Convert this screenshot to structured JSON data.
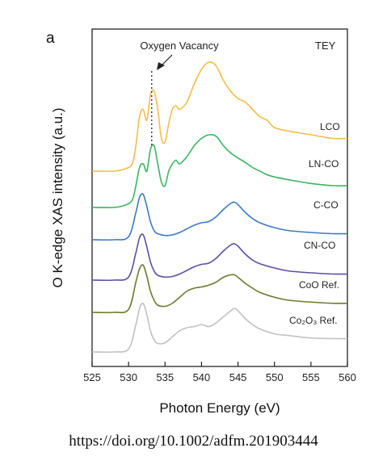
{
  "panel_letter": "a",
  "caption": "https://doi.org/10.1002/adfm.201903444",
  "chart_data": {
    "type": "line",
    "title": "",
    "xlabel": "Photon Energy (eV)",
    "ylabel": "O K-edge XAS intensity (a.u.)",
    "xlim": [
      525,
      560
    ],
    "xticks": [
      "525",
      "530",
      "535",
      "540",
      "545",
      "550",
      "555",
      "560"
    ],
    "ytick_labels": false,
    "grid": false,
    "legend": "labels next to each curve on the right side",
    "mode_label": "TEY",
    "annotation": {
      "text": "Oxygen Vacancy",
      "energy": 533.5
    },
    "series": [
      {
        "name": "LCO",
        "color": "#f4bd49",
        "baseline": 0.0,
        "points": [
          [
            525,
            0.0
          ],
          [
            528,
            0.0
          ],
          [
            529.5,
            0.03
          ],
          [
            530.5,
            0.1
          ],
          [
            531,
            0.35
          ],
          [
            531.5,
            0.75
          ],
          [
            532,
            0.85
          ],
          [
            532.5,
            0.7
          ],
          [
            533,
            1.05
          ],
          [
            533.5,
            1.1
          ],
          [
            534,
            0.85
          ],
          [
            534.5,
            0.45
          ],
          [
            535,
            0.4
          ],
          [
            535.5,
            0.65
          ],
          [
            536,
            0.85
          ],
          [
            536.5,
            0.9
          ],
          [
            537,
            0.85
          ],
          [
            538,
            0.95
          ],
          [
            539,
            1.2
          ],
          [
            540,
            1.4
          ],
          [
            541,
            1.5
          ],
          [
            542,
            1.45
          ],
          [
            543,
            1.25
          ],
          [
            544,
            1.1
          ],
          [
            545,
            1.0
          ],
          [
            546,
            0.95
          ],
          [
            547,
            0.85
          ],
          [
            548,
            0.75
          ],
          [
            549,
            0.7
          ],
          [
            550,
            0.6
          ],
          [
            552,
            0.55
          ],
          [
            555,
            0.5
          ],
          [
            558,
            0.45
          ],
          [
            560,
            0.45
          ]
        ]
      },
      {
        "name": "LN-CO",
        "color": "#3bb462",
        "baseline": 0.0,
        "points": [
          [
            525,
            0.0
          ],
          [
            528,
            0.0
          ],
          [
            529.5,
            0.03
          ],
          [
            530.5,
            0.1
          ],
          [
            531,
            0.3
          ],
          [
            531.5,
            0.55
          ],
          [
            532,
            0.6
          ],
          [
            532.5,
            0.5
          ],
          [
            533,
            0.8
          ],
          [
            533.5,
            0.85
          ],
          [
            534,
            0.6
          ],
          [
            534.5,
            0.35
          ],
          [
            535,
            0.3
          ],
          [
            535.5,
            0.5
          ],
          [
            536,
            0.6
          ],
          [
            536.5,
            0.65
          ],
          [
            537,
            0.6
          ],
          [
            538,
            0.7
          ],
          [
            539,
            0.85
          ],
          [
            540,
            0.95
          ],
          [
            541,
            1.0
          ],
          [
            542,
            0.98
          ],
          [
            543,
            0.85
          ],
          [
            544,
            0.75
          ],
          [
            545,
            0.68
          ],
          [
            546,
            0.62
          ],
          [
            547,
            0.55
          ],
          [
            548,
            0.5
          ],
          [
            549,
            0.45
          ],
          [
            550,
            0.42
          ],
          [
            552,
            0.38
          ],
          [
            555,
            0.33
          ],
          [
            558,
            0.3
          ],
          [
            560,
            0.3
          ]
        ]
      },
      {
        "name": "C-CO",
        "color": "#3b7bc4",
        "baseline": 0.0,
        "points": [
          [
            525,
            0.0
          ],
          [
            528,
            0.0
          ],
          [
            530,
            0.05
          ],
          [
            531,
            0.45
          ],
          [
            531.5,
            0.7
          ],
          [
            532,
            0.75
          ],
          [
            532.5,
            0.55
          ],
          [
            533,
            0.3
          ],
          [
            533.5,
            0.15
          ],
          [
            534,
            0.1
          ],
          [
            535,
            0.07
          ],
          [
            536,
            0.08
          ],
          [
            537,
            0.12
          ],
          [
            538,
            0.18
          ],
          [
            539,
            0.24
          ],
          [
            540,
            0.28
          ],
          [
            541,
            0.3
          ],
          [
            542,
            0.38
          ],
          [
            543,
            0.5
          ],
          [
            544,
            0.6
          ],
          [
            544.5,
            0.62
          ],
          [
            545,
            0.58
          ],
          [
            546,
            0.45
          ],
          [
            547,
            0.35
          ],
          [
            548,
            0.28
          ],
          [
            550,
            0.2
          ],
          [
            552,
            0.15
          ],
          [
            555,
            0.12
          ],
          [
            558,
            0.1
          ],
          [
            560,
            0.1
          ]
        ]
      },
      {
        "name": "CN-CO",
        "color": "#5c4ea7",
        "baseline": 0.0,
        "points": [
          [
            525,
            0.0
          ],
          [
            528,
            0.0
          ],
          [
            530,
            0.05
          ],
          [
            531,
            0.45
          ],
          [
            531.5,
            0.7
          ],
          [
            532,
            0.75
          ],
          [
            532.5,
            0.55
          ],
          [
            533,
            0.3
          ],
          [
            533.5,
            0.15
          ],
          [
            534,
            0.08
          ],
          [
            535,
            0.05
          ],
          [
            536,
            0.06
          ],
          [
            537,
            0.1
          ],
          [
            538,
            0.16
          ],
          [
            539,
            0.22
          ],
          [
            540,
            0.26
          ],
          [
            541,
            0.28
          ],
          [
            542,
            0.36
          ],
          [
            543,
            0.48
          ],
          [
            544,
            0.58
          ],
          [
            544.5,
            0.6
          ],
          [
            545,
            0.56
          ],
          [
            546,
            0.43
          ],
          [
            547,
            0.33
          ],
          [
            548,
            0.27
          ],
          [
            550,
            0.2
          ],
          [
            552,
            0.15
          ],
          [
            555,
            0.12
          ],
          [
            558,
            0.1
          ],
          [
            560,
            0.1
          ]
        ]
      },
      {
        "name": "CoO Ref.",
        "color": "#6f7a2e",
        "baseline": 0.0,
        "points": [
          [
            525,
            0.0
          ],
          [
            528,
            0.0
          ],
          [
            530,
            0.05
          ],
          [
            531,
            0.5
          ],
          [
            531.5,
            0.72
          ],
          [
            532,
            0.78
          ],
          [
            532.5,
            0.6
          ],
          [
            533,
            0.35
          ],
          [
            533.5,
            0.2
          ],
          [
            534,
            0.12
          ],
          [
            535,
            0.1
          ],
          [
            536,
            0.15
          ],
          [
            537,
            0.25
          ],
          [
            538,
            0.35
          ],
          [
            539,
            0.4
          ],
          [
            540,
            0.42
          ],
          [
            541,
            0.45
          ],
          [
            542,
            0.5
          ],
          [
            543,
            0.58
          ],
          [
            544,
            0.62
          ],
          [
            544.5,
            0.62
          ],
          [
            545,
            0.58
          ],
          [
            546,
            0.48
          ],
          [
            547,
            0.4
          ],
          [
            548,
            0.33
          ],
          [
            550,
            0.25
          ],
          [
            552,
            0.2
          ],
          [
            555,
            0.17
          ],
          [
            558,
            0.15
          ],
          [
            560,
            0.15
          ]
        ]
      },
      {
        "name": "Co₂O₃ Ref.",
        "color": "#bfc2bf",
        "baseline": 0.0,
        "points": [
          [
            525,
            0.0
          ],
          [
            528,
            0.0
          ],
          [
            530,
            0.05
          ],
          [
            531,
            0.45
          ],
          [
            531.5,
            0.72
          ],
          [
            532,
            0.8
          ],
          [
            532.5,
            0.62
          ],
          [
            533,
            0.35
          ],
          [
            533.5,
            0.2
          ],
          [
            534,
            0.14
          ],
          [
            535,
            0.15
          ],
          [
            536,
            0.25
          ],
          [
            537,
            0.35
          ],
          [
            538,
            0.4
          ],
          [
            539,
            0.42
          ],
          [
            540,
            0.45
          ],
          [
            541,
            0.42
          ],
          [
            542,
            0.48
          ],
          [
            543,
            0.58
          ],
          [
            544,
            0.68
          ],
          [
            544.5,
            0.72
          ],
          [
            545,
            0.68
          ],
          [
            546,
            0.55
          ],
          [
            547,
            0.45
          ],
          [
            548,
            0.38
          ],
          [
            550,
            0.3
          ],
          [
            552,
            0.27
          ],
          [
            555,
            0.23
          ],
          [
            558,
            0.22
          ],
          [
            560,
            0.22
          ]
        ]
      }
    ]
  }
}
